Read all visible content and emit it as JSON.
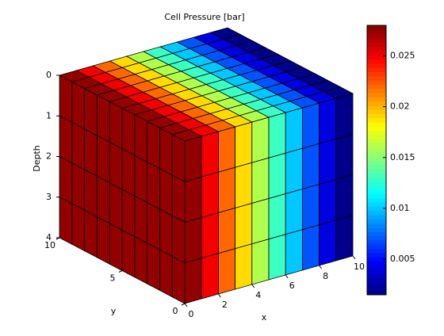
{
  "chart_data": {
    "type": "cube3d",
    "title": "Cell Pressure [bar]",
    "xlabel": "x",
    "ylabel": "y",
    "zlabel": "Depth",
    "values": [
      0.0275,
      0.025,
      0.022,
      0.019,
      0.016,
      0.013,
      0.01,
      0.007,
      0.004,
      0.0018
    ],
    "xlim": [
      0,
      10
    ],
    "xticks": [
      0,
      2,
      4,
      6,
      8,
      10
    ],
    "ylim": [
      0,
      10
    ],
    "yticks": [
      0,
      5,
      10
    ],
    "zlim": [
      0,
      4
    ],
    "zticks": [
      0,
      1,
      2,
      3,
      4
    ],
    "clim": [
      0.0015,
      0.028
    ],
    "cticks": [
      0.005,
      0.01,
      0.015,
      0.02,
      0.025
    ],
    "colormap": "jet"
  }
}
